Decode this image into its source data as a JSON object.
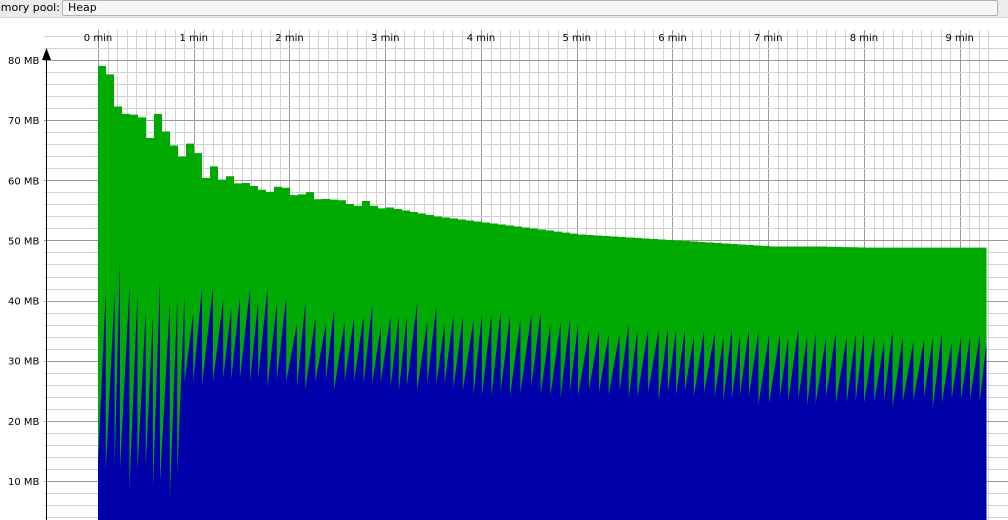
{
  "toolbar": {
    "pool_label": "emory pool:",
    "pool_value": "Heap"
  },
  "chart_data": {
    "type": "area",
    "title": "",
    "xlabel": "",
    "ylabel": "",
    "x_unit": "min",
    "x_tick_labels": [
      "0 min",
      "1 min",
      "2 min",
      "3 min",
      "4 min",
      "5 min",
      "6 min",
      "7 min",
      "8 min",
      "9 min"
    ],
    "y_tick_labels": [
      "80 MB",
      "70 MB",
      "60 MB",
      "50 MB",
      "40 MB",
      "30 MB",
      "20 MB",
      "10 MB"
    ],
    "xlim": [
      0,
      9.3
    ],
    "ylim": [
      3.5,
      85
    ],
    "grid": true,
    "legend": "none",
    "series": [
      {
        "role": "total",
        "color": "#00aa00",
        "x": [
          0,
          0.05,
          0.1,
          0.2,
          0.3,
          0.4,
          0.5,
          0.6,
          0.7,
          0.8,
          0.9,
          1.0,
          1.2,
          1.4,
          1.6,
          1.8,
          2.0,
          2.5,
          3.0,
          3.5,
          4.0,
          4.5,
          5.0,
          5.5,
          6.0,
          6.5,
          7.0,
          7.5,
          8.0,
          8.5,
          9.0,
          9.3
        ],
        "values": [
          78.5,
          78,
          76,
          73,
          71,
          70,
          69,
          68,
          66.5,
          65,
          64,
          63,
          61.5,
          60,
          59,
          58.5,
          58,
          56.5,
          55.5,
          54,
          53,
          52,
          51,
          50.5,
          50,
          49.5,
          49,
          49,
          48.8,
          48.8,
          48.8,
          48.8
        ]
      },
      {
        "role": "used",
        "color": "#0000aa",
        "x": [
          0,
          0.4,
          0.8,
          0.85,
          0.9,
          1.5,
          2.0,
          3.0,
          4.0,
          5.0,
          6.0,
          7.0,
          8.0,
          9.0,
          9.3
        ],
        "values": [
          28,
          27,
          26,
          27,
          34,
          33.5,
          33,
          32.5,
          32,
          31.5,
          31,
          30.5,
          30,
          30,
          30
        ]
      }
    ]
  }
}
